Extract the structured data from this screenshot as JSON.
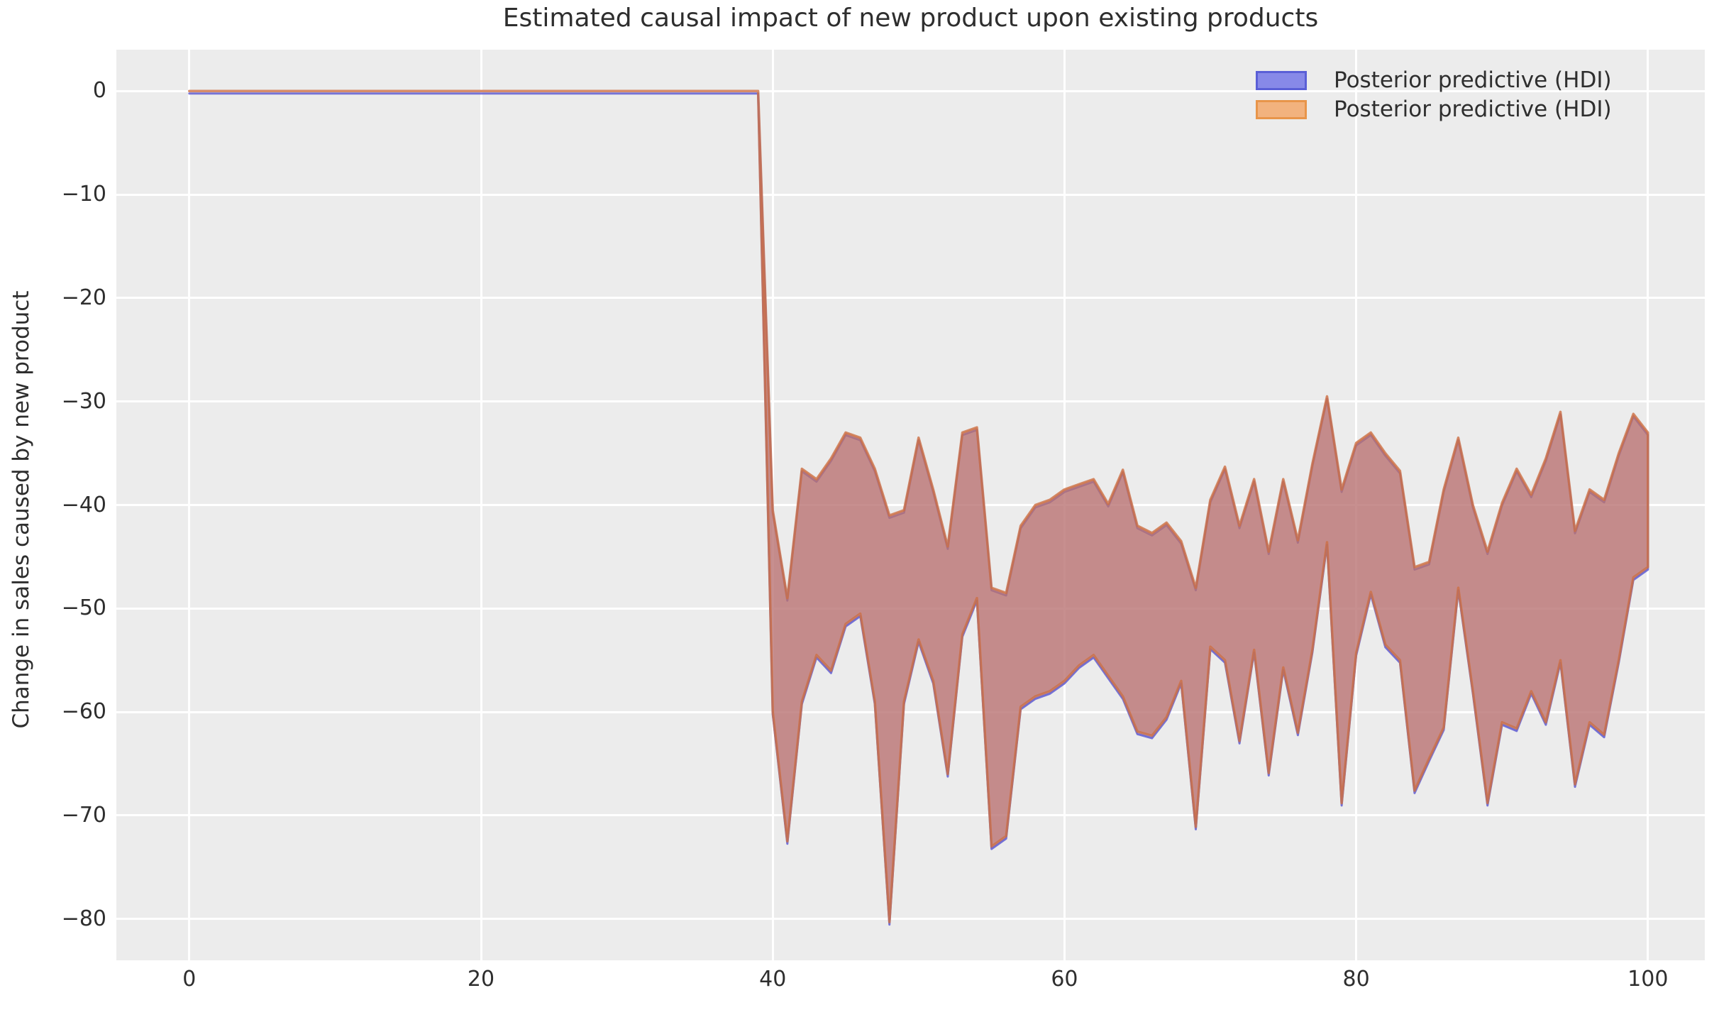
{
  "figure": {
    "title": "Estimated causal impact of new product upon existing products",
    "ylabel": "Change in sales caused by new product",
    "background": "#ffffff",
    "axes_background": "#ececec",
    "grid_color": "#ffffff",
    "text_color": "#2e2e2e"
  },
  "legend": {
    "entries": [
      {
        "label": "Posterior predictive (HDI)",
        "fill": "#8789e8",
        "border": "#5a5fd6"
      },
      {
        "label": "Posterior predictive (HDI)",
        "fill": "#f2b27e",
        "border": "#e8954a"
      }
    ]
  },
  "axes": {
    "xlim": [
      -5,
      103.9
    ],
    "ylim": [
      -84,
      4
    ],
    "x_ticks": [
      {
        "value": 0,
        "label": "0"
      },
      {
        "value": 20,
        "label": "20"
      },
      {
        "value": 40,
        "label": "40"
      },
      {
        "value": 60,
        "label": "60"
      },
      {
        "value": 80,
        "label": "80"
      },
      {
        "value": 100,
        "label": "100"
      }
    ],
    "y_ticks": [
      {
        "value": 0,
        "label": "0"
      },
      {
        "value": -10,
        "label": "−10"
      },
      {
        "value": -20,
        "label": "−20"
      },
      {
        "value": -30,
        "label": "−30"
      },
      {
        "value": -40,
        "label": "−40"
      },
      {
        "value": -50,
        "label": "−50"
      },
      {
        "value": -60,
        "label": "−60"
      },
      {
        "value": -70,
        "label": "−70"
      },
      {
        "value": -80,
        "label": "−80"
      }
    ]
  },
  "chart_data": {
    "type": "area",
    "title": "Estimated causal impact of new product upon existing products",
    "xlabel": "",
    "ylabel": "Change in sales caused by new product",
    "grid": true,
    "legend_position": "upper right",
    "note": "Two nearly identical posterior-predictive HDI bands (blue and orange) are plotted on top of each other; their overlap renders as a brick/rose colored band. Impact is 0 before x=39, then a vertical drop into a noisy negative band from x=40 to x=100.",
    "pre_period": {
      "x": [
        0,
        39
      ],
      "y": [
        0,
        0
      ]
    },
    "band": {
      "x": [
        40,
        41,
        42,
        43,
        44,
        45,
        46,
        47,
        48,
        49,
        50,
        51,
        52,
        53,
        54,
        55,
        56,
        57,
        58,
        59,
        60,
        61,
        62,
        63,
        64,
        65,
        66,
        67,
        68,
        69,
        70,
        71,
        72,
        73,
        74,
        75,
        76,
        77,
        78,
        79,
        80,
        81,
        82,
        83,
        84,
        85,
        86,
        87,
        88,
        89,
        90,
        91,
        92,
        93,
        94,
        95,
        96,
        97,
        98,
        99,
        100
      ],
      "upper": [
        -40.5,
        -49,
        -36.5,
        -37.5,
        -35.5,
        -33,
        -33.5,
        -36.5,
        -41,
        -40.5,
        -33.5,
        -38.5,
        -44,
        -33,
        -32.5,
        -48,
        -48.5,
        -42,
        -40,
        -39.5,
        -38.5,
        -38,
        -37.5,
        -39.9,
        -36.6,
        -42,
        -42.7,
        -41.7,
        -43.5,
        -48,
        -39.5,
        -36.3,
        -42,
        -37.5,
        -44.5,
        -37.5,
        -43.4,
        -36,
        -29.5,
        -38.5,
        -34,
        -33,
        -35,
        -36.7,
        -46,
        -45.5,
        -38.5,
        -33.5,
        -40,
        -44.5,
        -39.8,
        -36.5,
        -39,
        -35.5,
        -31,
        -42.5,
        -38.5,
        -39.5,
        -35,
        -31.2,
        -33
      ],
      "lower": [
        -60,
        -72.5,
        -59,
        -54.5,
        -56,
        -51.5,
        -50.5,
        -59,
        -80.3,
        -59,
        -53,
        -57,
        -66,
        -52.5,
        -49,
        -73,
        -72,
        -59.5,
        -58.5,
        -58,
        -57,
        -55.5,
        -54.5,
        -56.5,
        -58.5,
        -61.9,
        -62.3,
        -60.5,
        -57,
        -71.1,
        -53.7,
        -55,
        -62.8,
        -54,
        -65.9,
        -55.7,
        -62,
        -54,
        -43.6,
        -68.8,
        -54.3,
        -48.4,
        -53.5,
        -55,
        -67.6,
        -64.5,
        -61.5,
        -48,
        -58,
        -68.8,
        -61,
        -61.6,
        -58,
        -61,
        -55,
        -67,
        -61,
        -62.2,
        -55,
        -47,
        -46
      ]
    },
    "colors": {
      "blue_fill": "rgba(108,106,224,0.5)",
      "blue_edge": "rgba(98,94,209,0.85)",
      "orange_fill": "rgba(212,118,78,0.6)",
      "orange_edge": "rgba(205,111,67,0.8)"
    }
  }
}
